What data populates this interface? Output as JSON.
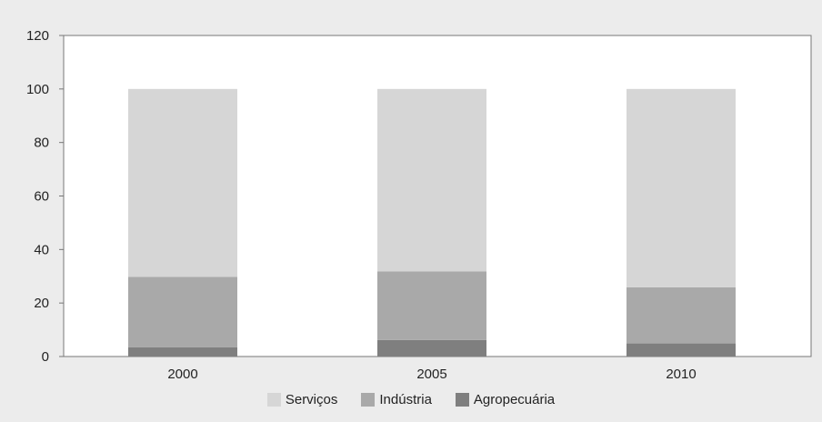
{
  "chart_data": {
    "type": "bar",
    "stacked": true,
    "categories": [
      "2000",
      "2005",
      "2010"
    ],
    "series": [
      {
        "name": "Agropecuária",
        "values": [
          3.5,
          6.2,
          4.9
        ],
        "color": "#7f7f7f"
      },
      {
        "name": "Indústria",
        "values": [
          26.3,
          25.6,
          21.0
        ],
        "color": "#a9a9a9"
      },
      {
        "name": "Serviços",
        "values": [
          70.2,
          68.2,
          74.1
        ],
        "color": "#d6d6d6"
      }
    ],
    "legend_order": [
      "Serviços",
      "Indústria",
      "Agropecuária"
    ],
    "ylim": [
      0,
      120
    ],
    "yticks": [
      0,
      20,
      40,
      60,
      80,
      100,
      120
    ],
    "grid": false,
    "legend_position": "bottom",
    "title": "",
    "xlabel": "",
    "ylabel": ""
  }
}
